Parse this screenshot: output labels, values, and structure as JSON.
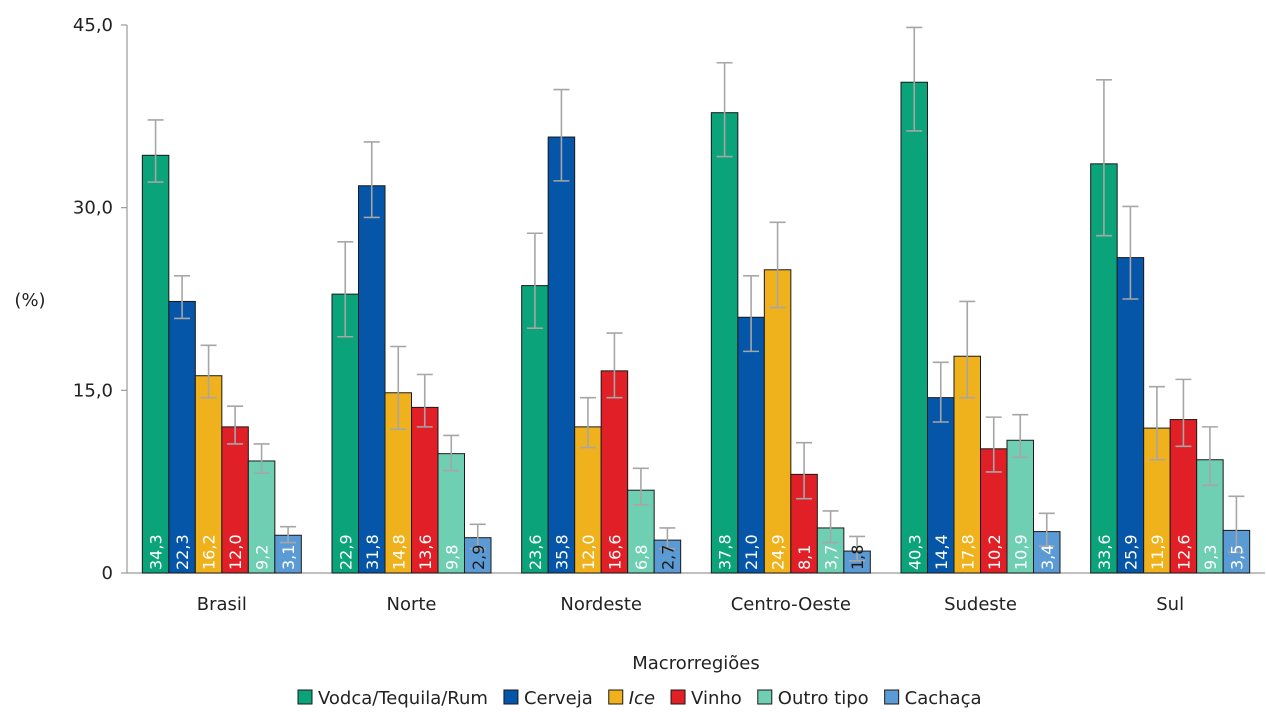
{
  "chart_data": {
    "type": "bar",
    "title": "",
    "xlabel": "Macrorregiões",
    "ylabel": "(%)",
    "ylim": [
      0,
      45
    ],
    "yticks": [
      0,
      15,
      30,
      45
    ],
    "ytick_labels": [
      "0",
      "15,0",
      "30,0",
      "45,0"
    ],
    "grid": false,
    "legend_position": "bottom",
    "categories": [
      "Brasil",
      "Norte",
      "Nordeste",
      "Centro-Oeste",
      "Sudeste",
      "Sul"
    ],
    "series": [
      {
        "name": "Vodca/Tequila/Rum",
        "color": "#0aa37a",
        "values": [
          34.3,
          22.9,
          23.6,
          37.8,
          40.3,
          33.6
        ],
        "labels": [
          "34,3",
          "22,9",
          "23,6",
          "37,8",
          "40,3",
          "33,6"
        ],
        "ci_low": [
          32.1,
          19.4,
          20.1,
          34.2,
          36.3,
          27.7
        ],
        "ci_high": [
          37.2,
          27.2,
          27.9,
          41.9,
          44.8,
          40.5
        ]
      },
      {
        "name": "Cerveja",
        "color": "#0555a8",
        "values": [
          22.3,
          31.8,
          35.8,
          21.0,
          14.4,
          25.9
        ],
        "labels": [
          "22,3",
          "31,8",
          "35,8",
          "21,0",
          "14,4",
          "25,9"
        ],
        "ci_low": [
          20.9,
          29.2,
          32.2,
          18.2,
          12.4,
          22.5
        ],
        "ci_high": [
          24.4,
          35.4,
          39.7,
          24.4,
          17.3,
          30.1
        ]
      },
      {
        "name": "Ice",
        "italic": true,
        "color": "#f0b21c",
        "values": [
          16.2,
          14.8,
          12.0,
          24.9,
          17.8,
          11.9
        ],
        "labels": [
          "16,2",
          "14,8",
          "12,0",
          "24,9",
          "17,8",
          "11,9"
        ],
        "ci_low": [
          14.4,
          11.8,
          10.3,
          21.8,
          14.4,
          9.3
        ],
        "ci_high": [
          18.7,
          18.6,
          14.4,
          28.8,
          22.3,
          15.3
        ]
      },
      {
        "name": "Vinho",
        "color": "#e01f26",
        "values": [
          12.0,
          13.6,
          16.6,
          8.1,
          10.2,
          12.6
        ],
        "labels": [
          "12,0",
          "13,6",
          "16,6",
          "8,1",
          "10,2",
          "12,6"
        ],
        "ci_low": [
          10.6,
          12.0,
          14.4,
          6.1,
          8.3,
          10.4
        ],
        "ci_high": [
          13.7,
          16.3,
          19.7,
          10.7,
          12.8,
          15.9
        ]
      },
      {
        "name": "Outro tipo",
        "color": "#6ecfb2",
        "values": [
          9.2,
          9.8,
          6.8,
          3.7,
          10.9,
          9.3
        ],
        "labels": [
          "9,2",
          "9,8",
          "6,8",
          "3,7",
          "10,9",
          "9,3"
        ],
        "ci_low": [
          8.2,
          8.4,
          5.6,
          2.5,
          9.5,
          7.2
        ],
        "ci_high": [
          10.6,
          11.3,
          8.6,
          5.1,
          13.0,
          12.0
        ]
      },
      {
        "name": "Cachaça",
        "color": "#5b9bd5",
        "values": [
          3.1,
          2.9,
          2.7,
          1.8,
          3.4,
          3.5
        ],
        "labels": [
          "3,1",
          "2,9",
          "2,7",
          "1,8",
          "3,4",
          "3,5"
        ],
        "ci_low": [
          2.5,
          2.0,
          2.0,
          1.0,
          2.2,
          1.7
        ],
        "ci_high": [
          3.8,
          4.0,
          3.7,
          3.0,
          4.9,
          6.3
        ]
      }
    ]
  }
}
